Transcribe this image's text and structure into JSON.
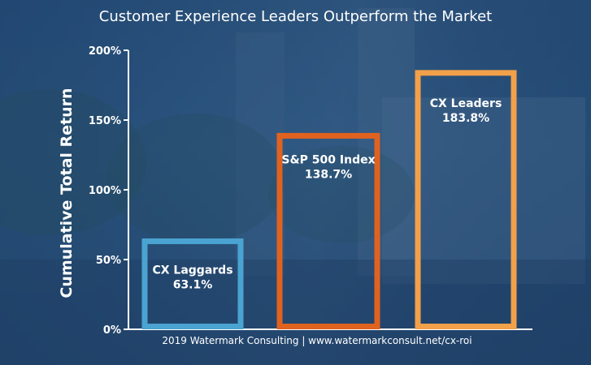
{
  "chart_data": {
    "type": "bar",
    "title": "Customer Experience Leaders Outperform the Market",
    "ylabel": "Cumulative Total Return",
    "xlabel": "",
    "ylim": [
      0,
      200
    ],
    "yticks": [
      "0%",
      "50%",
      "100%",
      "150%",
      "200%"
    ],
    "categories": [
      "CX Laggards",
      "S&P 500 Index",
      "CX Leaders"
    ],
    "values": [
      63.1,
      138.7,
      183.8
    ],
    "value_labels": [
      "63.1%",
      "138.7%",
      "183.8%"
    ],
    "colors": [
      "#4aa3d0",
      "#e0621f",
      "#f2a04a"
    ],
    "grid": false,
    "source": "2019 Watermark Consulting | www.watermarkconsult.net/cx-roi"
  }
}
